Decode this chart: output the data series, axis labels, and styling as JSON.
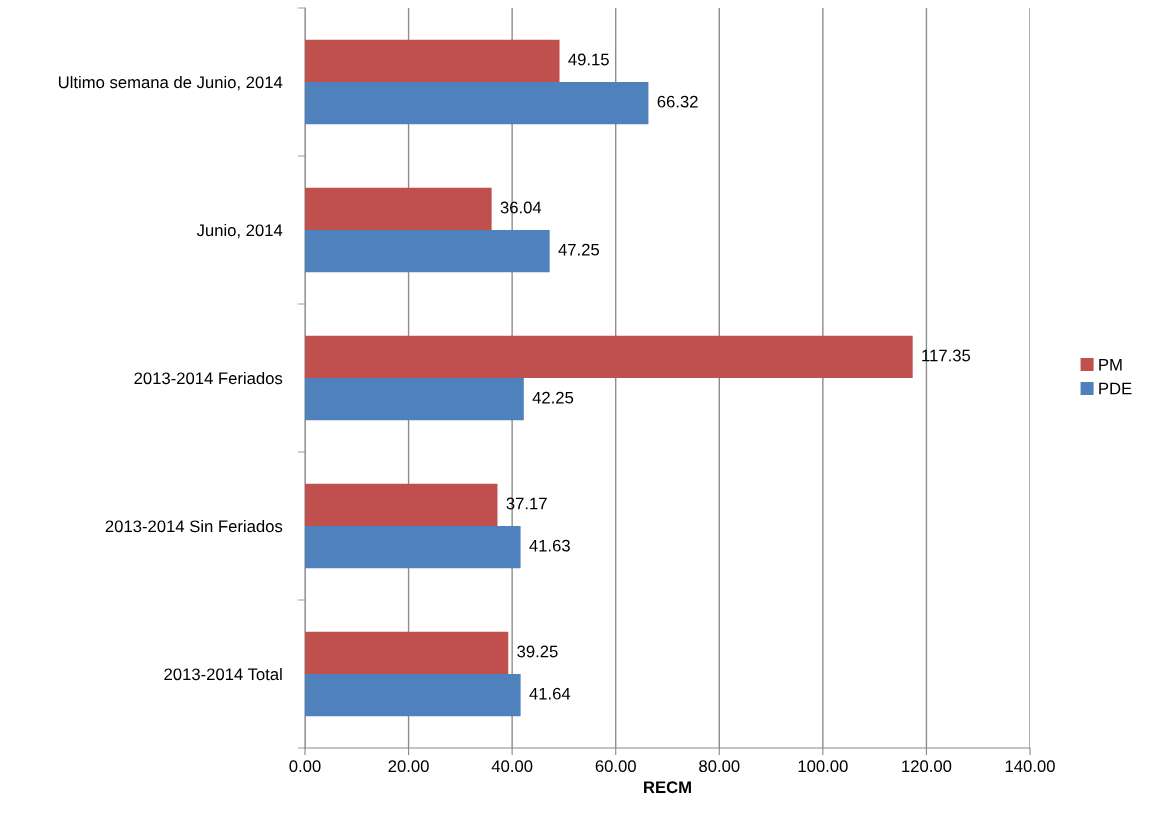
{
  "chart_data": {
    "type": "bar",
    "orientation": "horizontal",
    "xlabel": "RECM",
    "categories": [
      "Ultimo semana de Junio, 2014",
      "Junio, 2014",
      "2013-2014 Feriados",
      "2013-2014 Sin Feriados",
      "2013-2014 Total"
    ],
    "series": [
      {
        "name": "PM",
        "color": "#c0504d",
        "values": [
          49.15,
          36.04,
          117.35,
          37.17,
          39.25
        ]
      },
      {
        "name": "PDE",
        "color": "#4f81bd",
        "values": [
          66.32,
          47.25,
          42.25,
          41.63,
          41.64
        ]
      }
    ],
    "xlim": [
      0,
      140
    ],
    "xticks": [
      {
        "value": 0,
        "label": "0.00"
      },
      {
        "value": 20,
        "label": "20.00"
      },
      {
        "value": 40,
        "label": "40.00"
      },
      {
        "value": 60,
        "label": "60.00"
      },
      {
        "value": 80,
        "label": "80.00"
      },
      {
        "value": 100,
        "label": "100.00"
      },
      {
        "value": 120,
        "label": "120.00"
      },
      {
        "value": 140,
        "label": "140.00"
      }
    ],
    "grid": "x",
    "legend": "right",
    "data_labels": true
  }
}
